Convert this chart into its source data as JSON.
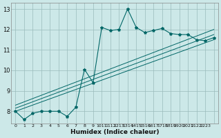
{
  "title": "",
  "xlabel": "Humidex (Indice chaleur)",
  "bg_color": "#cce8e8",
  "grid_color": "#99bbbb",
  "line_color": "#006666",
  "xlim": [
    -0.5,
    23.5
  ],
  "ylim": [
    7.4,
    13.3
  ],
  "xtick_vals": [
    0,
    1,
    2,
    3,
    4,
    5,
    6,
    7,
    8,
    9,
    10,
    11,
    12,
    13,
    14,
    15,
    16,
    17,
    18,
    19,
    20,
    21,
    22,
    23
  ],
  "xtick_labels": [
    "0",
    "1",
    "2",
    "3",
    "4",
    "5",
    "6",
    "7",
    "8",
    "9",
    "1011",
    "1112",
    "1213",
    "1314",
    "1415",
    "1516",
    "1617",
    "1718",
    "1819",
    "1920",
    "2021",
    "2122",
    "2223",
    ""
  ],
  "ytick_vals": [
    8,
    9,
    10,
    11,
    12,
    13
  ],
  "ytick_labels": [
    "8",
    "9",
    "10",
    "11",
    "12",
    "13"
  ],
  "main_x": [
    0,
    1,
    2,
    3,
    4,
    5,
    6,
    7,
    8,
    9,
    10,
    11,
    12,
    13,
    14,
    15,
    16,
    17,
    18,
    19,
    20,
    21,
    22,
    23
  ],
  "main_y": [
    8.0,
    7.6,
    7.9,
    8.0,
    8.0,
    8.0,
    7.75,
    8.2,
    10.05,
    9.4,
    12.1,
    11.95,
    12.0,
    13.0,
    12.1,
    11.85,
    11.95,
    12.05,
    11.8,
    11.75,
    11.75,
    11.5,
    11.45,
    11.6
  ],
  "reg_lines": [
    {
      "x": [
        0,
        23
      ],
      "y": [
        8.0,
        11.5
      ]
    },
    {
      "x": [
        0,
        23
      ],
      "y": [
        8.15,
        11.75
      ]
    },
    {
      "x": [
        0,
        23
      ],
      "y": [
        8.3,
        12.0
      ]
    }
  ]
}
